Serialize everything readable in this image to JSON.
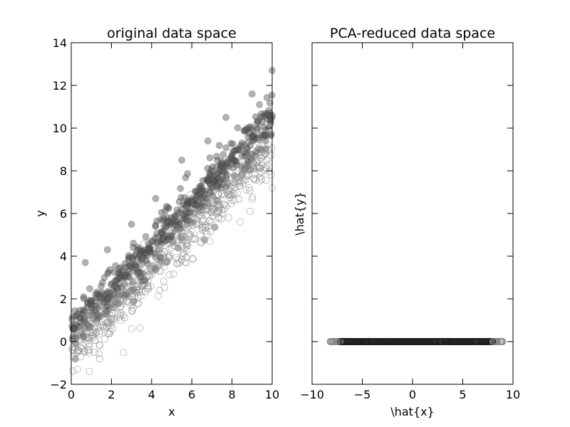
{
  "chart_data": [
    {
      "type": "scatter",
      "title": "original data space",
      "xlabel": "x",
      "ylabel": "y",
      "xlim": [
        0,
        10
      ],
      "ylim": [
        -2,
        14
      ],
      "xticks": [
        "0",
        "2",
        "4",
        "6",
        "8",
        "10"
      ],
      "yticks": [
        "−2",
        "0",
        "2",
        "4",
        "6",
        "8",
        "10",
        "12",
        "14"
      ],
      "grid": false,
      "series": [
        {
          "style": "filled-gray",
          "color": "#555555",
          "trend": {
            "intercept": 0.5,
            "slope": 0.99
          },
          "x_range": [
            0,
            10
          ],
          "points": [
            [
              0.1,
              0.6
            ],
            [
              0.3,
              1.2
            ],
            [
              0.5,
              0.9
            ],
            [
              0.8,
              1.6
            ],
            [
              1.0,
              1.9
            ],
            [
              1.2,
              1.5
            ],
            [
              1.5,
              2.3
            ],
            [
              1.8,
              2.0
            ],
            [
              2.0,
              2.7
            ],
            [
              2.3,
              2.9
            ],
            [
              2.5,
              3.1
            ],
            [
              2.8,
              3.3
            ],
            [
              3.0,
              3.5
            ],
            [
              3.3,
              3.9
            ],
            [
              3.5,
              4.2
            ],
            [
              3.8,
              4.3
            ],
            [
              4.0,
              4.7
            ],
            [
              4.3,
              4.9
            ],
            [
              4.5,
              5.1
            ],
            [
              4.8,
              5.6
            ],
            [
              5.0,
              5.5
            ],
            [
              5.3,
              6.0
            ],
            [
              5.5,
              6.2
            ],
            [
              5.8,
              6.6
            ],
            [
              6.0,
              6.6
            ],
            [
              6.3,
              7.0
            ],
            [
              6.5,
              7.1
            ],
            [
              6.8,
              7.5
            ],
            [
              7.0,
              7.6
            ],
            [
              7.3,
              7.9
            ],
            [
              7.5,
              8.2
            ],
            [
              7.8,
              8.4
            ],
            [
              8.0,
              8.6
            ],
            [
              8.3,
              9.0
            ],
            [
              8.5,
              9.3
            ],
            [
              8.8,
              9.6
            ],
            [
              9.0,
              9.6
            ],
            [
              9.3,
              10.0
            ],
            [
              9.5,
              10.3
            ],
            [
              9.8,
              10.6
            ],
            [
              10.0,
              10.6
            ],
            [
              0.7,
              3.7
            ],
            [
              1.8,
              4.3
            ],
            [
              3.0,
              5.5
            ],
            [
              4.2,
              6.7
            ],
            [
              5.5,
              8.5
            ],
            [
              6.8,
              9.4
            ],
            [
              7.7,
              10.5
            ],
            [
              9.0,
              11.6
            ],
            [
              10.0,
              12.7
            ]
          ]
        },
        {
          "style": "open-circle",
          "color": "#888888",
          "trend": {
            "intercept": -0.5,
            "slope": 0.95
          },
          "x_range": [
            0,
            10
          ],
          "points": [
            [
              0.1,
              -0.4
            ],
            [
              0.3,
              -1.3
            ],
            [
              0.5,
              -0.3
            ],
            [
              0.9,
              -1.4
            ],
            [
              1.2,
              0.4
            ],
            [
              1.5,
              0.8
            ],
            [
              1.8,
              0.9
            ],
            [
              2.0,
              1.2
            ],
            [
              2.3,
              1.8
            ],
            [
              2.5,
              1.9
            ],
            [
              2.8,
              2.1
            ],
            [
              3.0,
              0.6
            ],
            [
              3.3,
              2.6
            ],
            [
              3.5,
              2.9
            ],
            [
              3.8,
              3.1
            ],
            [
              4.0,
              3.4
            ],
            [
              4.3,
              3.6
            ],
            [
              4.5,
              3.9
            ],
            [
              4.8,
              4.1
            ],
            [
              5.0,
              4.4
            ],
            [
              5.3,
              4.6
            ],
            [
              5.5,
              4.9
            ],
            [
              5.8,
              4.5
            ],
            [
              6.0,
              5.2
            ],
            [
              6.3,
              5.6
            ],
            [
              6.5,
              5.9
            ],
            [
              6.8,
              6.2
            ],
            [
              7.0,
              6.4
            ],
            [
              7.3,
              6.6
            ],
            [
              7.5,
              6.9
            ],
            [
              7.8,
              7.1
            ],
            [
              8.0,
              7.3
            ],
            [
              8.3,
              7.5
            ],
            [
              8.5,
              7.8
            ],
            [
              8.8,
              8.0
            ],
            [
              9.0,
              8.2
            ],
            [
              9.3,
              8.5
            ],
            [
              9.5,
              8.7
            ],
            [
              9.8,
              9.0
            ],
            [
              10.0,
              7.2
            ],
            [
              2.6,
              -0.5
            ],
            [
              4.4,
              2.4
            ],
            [
              6.9,
              4.7
            ],
            [
              8.4,
              5.6
            ],
            [
              8.9,
              6.1
            ]
          ]
        }
      ]
    },
    {
      "type": "scatter",
      "title": "PCA-reduced data space",
      "xlabel": "\\hat{x}",
      "ylabel": "\\hat{y}",
      "xlim": [
        -10,
        10
      ],
      "xticks": [
        "−10",
        "−5",
        "0",
        "5",
        "10"
      ],
      "grid": false,
      "series": [
        {
          "style": "open-circle",
          "color": "#555555",
          "y": 0,
          "x_range": [
            -8.2,
            9.0
          ]
        }
      ]
    }
  ]
}
